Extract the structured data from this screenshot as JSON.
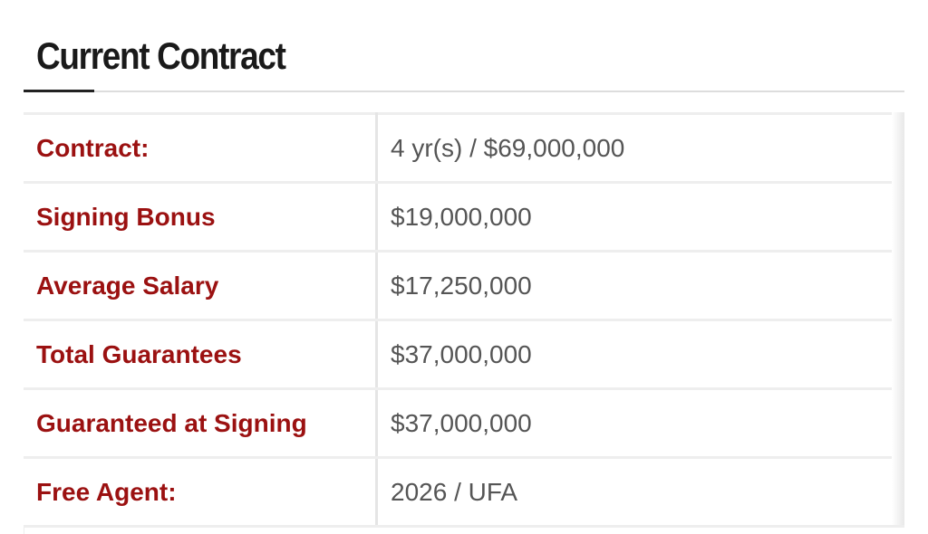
{
  "title": "Current Contract",
  "rows": [
    {
      "label": "Contract:",
      "value": "4 yr(s) / $69,000,000"
    },
    {
      "label": "Signing Bonus",
      "value": "$19,000,000"
    },
    {
      "label": "Average Salary",
      "value": "$17,250,000"
    },
    {
      "label": "Total Guarantees",
      "value": "$37,000,000"
    },
    {
      "label": "Guaranteed at Signing",
      "value": "$37,000,000"
    },
    {
      "label": "Free Agent:",
      "value": "2026 / UFA"
    }
  ]
}
